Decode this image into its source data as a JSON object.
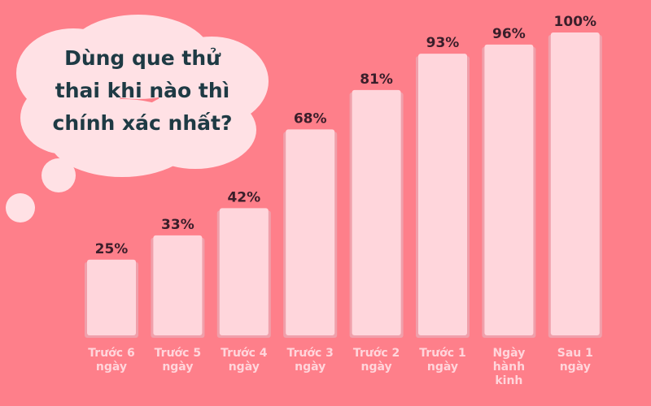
{
  "chart_data": {
    "type": "bar",
    "title": "Dùng que thử thai khi nào thì chính xác nhất?",
    "categories": [
      "Trước 6 ngày",
      "Trước 5 ngày",
      "Trước 4 ngày",
      "Trước 3 ngày",
      "Trước 2 ngày",
      "Trước 1 ngày",
      "Ngày hành kinh",
      "Sau 1 ngày"
    ],
    "values": [
      25,
      33,
      42,
      68,
      81,
      93,
      96,
      100
    ],
    "value_labels": [
      "25%",
      "33%",
      "42%",
      "68%",
      "81%",
      "93%",
      "96%",
      "100%"
    ],
    "color": "#ffd6dc"
  }
}
